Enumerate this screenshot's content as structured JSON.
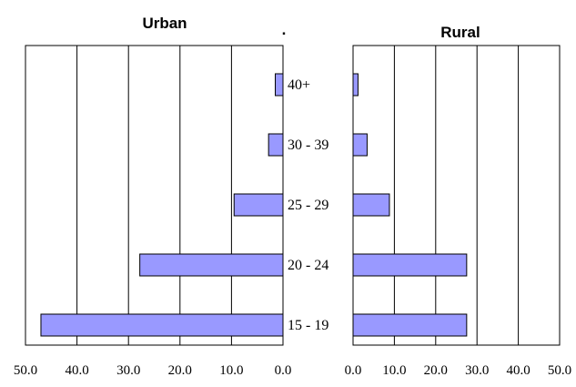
{
  "stray_mark": ".",
  "chart_data": [
    {
      "type": "bar",
      "orientation": "horizontal",
      "direction": "reversed",
      "title": "Urban",
      "categories": [
        "40+",
        "30 - 39",
        "25 - 29",
        "20 - 24",
        "15 - 19"
      ],
      "values": [
        1.5,
        2.8,
        9.5,
        27.8,
        47.0
      ],
      "xlim": [
        0,
        50
      ],
      "xticks": [
        "0.0",
        "10.0",
        "20.0",
        "30.0",
        "40.0",
        "50.0"
      ],
      "bar_color": "#9999ff",
      "grid": "vertical"
    },
    {
      "type": "bar",
      "orientation": "horizontal",
      "direction": "normal",
      "title": "Rural",
      "categories": [
        "40+",
        "30 - 39",
        "25 - 29",
        "20 - 24",
        "15 - 19"
      ],
      "values": [
        1.2,
        3.4,
        8.8,
        27.5,
        27.5
      ],
      "xlim": [
        0,
        50
      ],
      "xticks": [
        "0.0",
        "10.0",
        "20.0",
        "30.0",
        "40.0",
        "50.0"
      ],
      "bar_color": "#9999ff",
      "grid": "vertical"
    }
  ]
}
